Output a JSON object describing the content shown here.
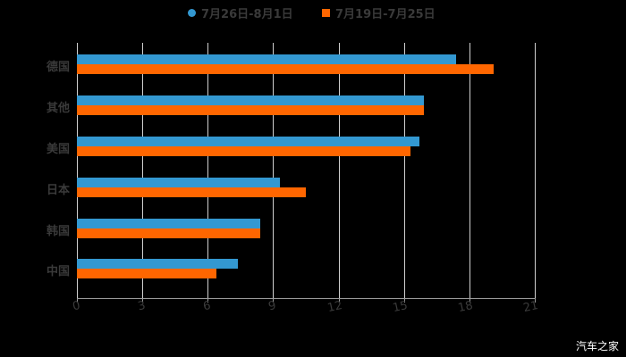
{
  "chart_data": {
    "type": "bar",
    "orientation": "horizontal",
    "title": "",
    "categories": [
      "德国",
      "其他",
      "美国",
      "日本",
      "韩国",
      "中国"
    ],
    "series": [
      {
        "name": "7月26日-8月1日",
        "color": "#3398d1",
        "values": [
          17.4,
          15.9,
          15.7,
          9.3,
          8.4,
          7.4
        ]
      },
      {
        "name": "7月19日-7月25日",
        "color": "#ff6600",
        "values": [
          19.1,
          15.9,
          15.3,
          10.5,
          8.4,
          6.4
        ]
      }
    ],
    "xlabel": "",
    "ylabel": "",
    "xlim": [
      0,
      21
    ],
    "x_ticks": [
      "0",
      "3",
      "6",
      "9",
      "12",
      "15",
      "18",
      "21"
    ],
    "grid": "vertical",
    "legend_position": "top"
  },
  "legend": {
    "items": [
      {
        "label": "7月26日-8月1日",
        "color": "#3398d1",
        "shape": "circle"
      },
      {
        "label": "7月19日-7月25日",
        "color": "#ff6600",
        "shape": "square"
      }
    ]
  },
  "watermark": "汽车之家"
}
